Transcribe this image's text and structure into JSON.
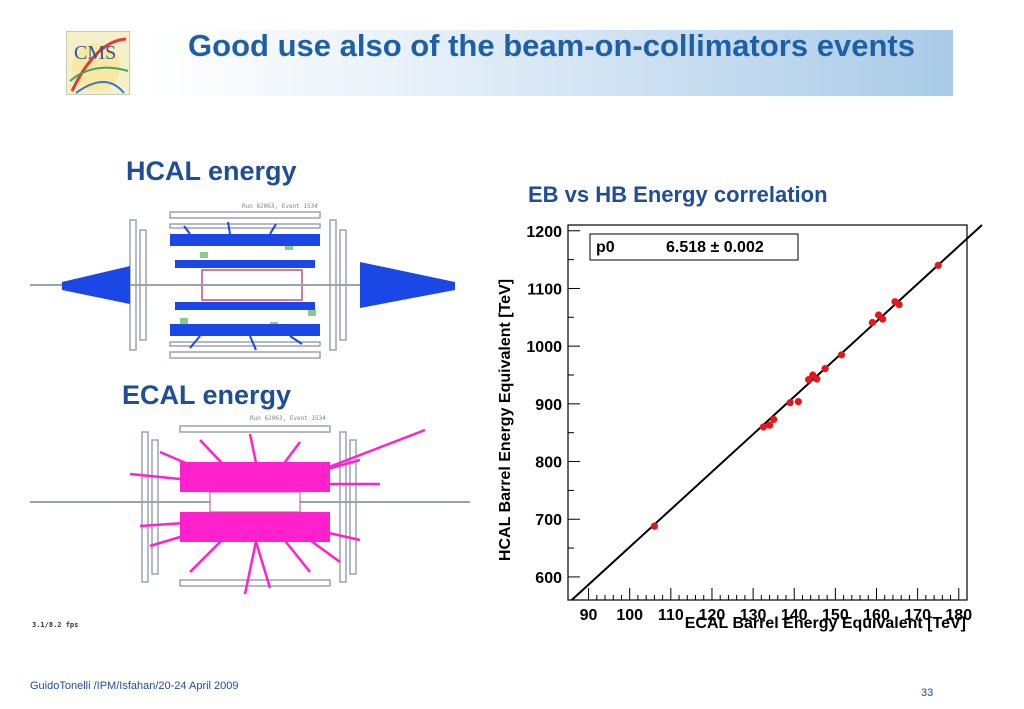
{
  "slide": {
    "title": "Good use also of the beam-on-collimators events",
    "logo_text": "CMS",
    "hcal_label": "HCAL energy",
    "ecal_label": "ECAL energy",
    "hcal_run_text": "Run 62063, Event 1534",
    "ecal_run_text": "Run 62063, Event 1534",
    "fps_text": "3.1/8.2 fps",
    "footer": "GuidoTonelli /IPM/Isfahan/20-24 April 2009",
    "page_number": "33",
    "colors": {
      "title": "#1f5fa8",
      "hcal": "#1a47e6",
      "ecal": "#ff22cc",
      "marker": "#e8161b"
    }
  },
  "chart_data": {
    "type": "scatter",
    "title": "EB vs HB Energy correlation",
    "xlabel": "ECAL Barrel Energy Equivalent [TeV]",
    "ylabel": "HCAL Barrel Energy Equivalent [TeV]",
    "xlim": [
      85,
      182
    ],
    "ylim": [
      560,
      1210
    ],
    "xticks": [
      "90",
      "100",
      "110",
      "120",
      "130",
      "140",
      "150",
      "160",
      "170",
      "180"
    ],
    "yticks": [
      "600",
      "700",
      "800",
      "900",
      "1000",
      "1100",
      "1200"
    ],
    "fit": {
      "label": "p0",
      "value_text": "6.518 ± 0.002",
      "slope": 6.518
    },
    "points": [
      [
        106,
        688
      ],
      [
        132.5,
        860
      ],
      [
        134,
        863
      ],
      [
        135,
        873
      ],
      [
        139,
        902
      ],
      [
        141,
        904
      ],
      [
        143.5,
        942
      ],
      [
        144.5,
        950
      ],
      [
        145.5,
        943
      ],
      [
        147.5,
        961
      ],
      [
        151.5,
        985
      ],
      [
        159,
        1041
      ],
      [
        160.5,
        1054
      ],
      [
        161.5,
        1047
      ],
      [
        164.5,
        1077
      ],
      [
        165.5,
        1072
      ],
      [
        175,
        1140
      ]
    ]
  }
}
